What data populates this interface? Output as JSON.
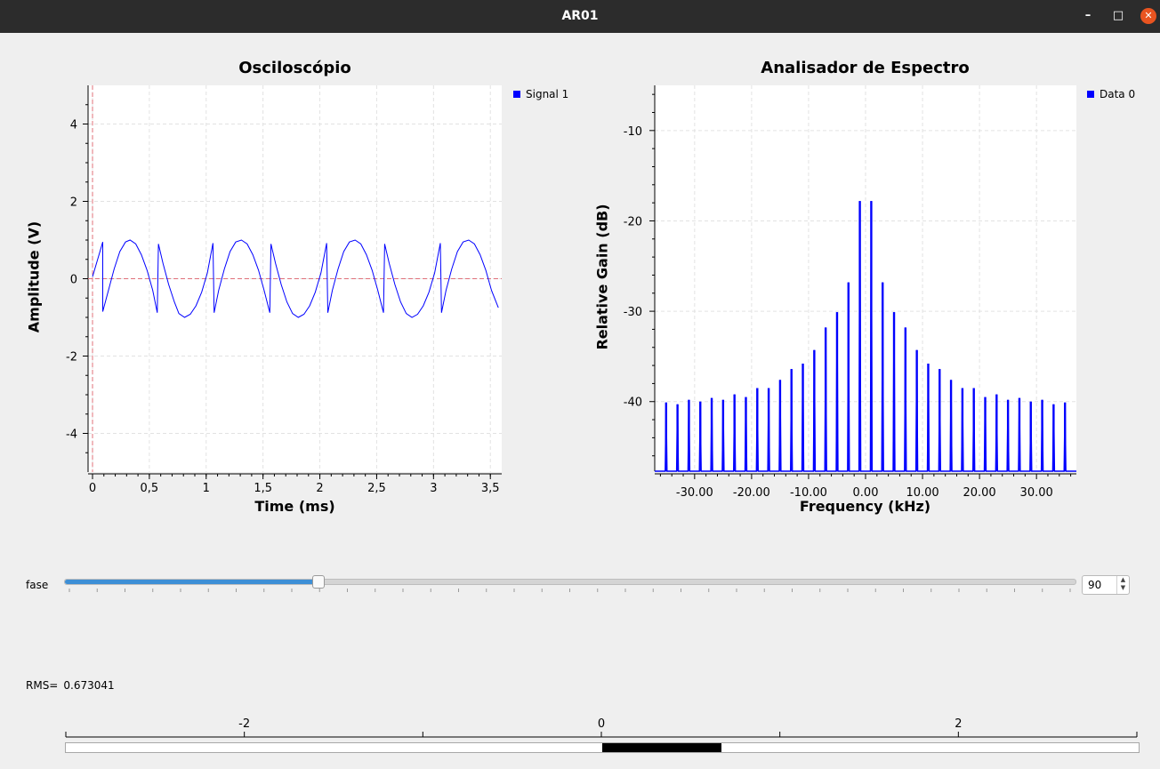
{
  "window": {
    "title": "AR01",
    "minimize_glyph": "–",
    "maximize_glyph": "□",
    "close_glyph": "✕"
  },
  "oscilloscope": {
    "title": "Osciloscópio",
    "xlabel": "Time (ms)",
    "ylabel": "Amplitude (V)",
    "legend": "Signal 1"
  },
  "spectrum": {
    "title": "Analisador de Espectro",
    "xlabel": "Frequency (kHz)",
    "ylabel": "Relative Gain (dB)",
    "legend": "Data 0"
  },
  "controls": {
    "fase_label": "fase",
    "fase_value": "90",
    "fase_min": 0,
    "fase_max": 360,
    "rms_label": "RMS=",
    "rms_value": "0.673041"
  },
  "bar_gauge": {
    "value": 0.67,
    "min": -3,
    "max": 3,
    "tick_labels": [
      {
        "v": -2,
        "t": "-2"
      },
      {
        "v": 0,
        "t": "0"
      },
      {
        "v": 2,
        "t": "2"
      }
    ]
  },
  "colors": {
    "signal": "#0000ff",
    "marker": "#e0707a",
    "accent": "#3d8fd6",
    "close": "#e95420"
  },
  "chart_data": [
    {
      "type": "line",
      "title": "Osciloscópio",
      "xlabel": "Time (ms)",
      "ylabel": "Amplitude (V)",
      "xlim": [
        0,
        3.6
      ],
      "ylim": [
        -5,
        5
      ],
      "xticks": [
        {
          "v": 0,
          "t": "0"
        },
        {
          "v": 0.5,
          "t": "0,5"
        },
        {
          "v": 1,
          "t": "1"
        },
        {
          "v": 1.5,
          "t": "1,5"
        },
        {
          "v": 2,
          "t": "2"
        },
        {
          "v": 2.5,
          "t": "2,5"
        },
        {
          "v": 3,
          "t": "3"
        },
        {
          "v": 3.5,
          "t": "3,5"
        }
      ],
      "yticks": [
        {
          "v": 4,
          "t": "4"
        },
        {
          "v": 2,
          "t": "2"
        },
        {
          "v": 0,
          "t": "0"
        },
        {
          "v": -2,
          "t": "-2"
        },
        {
          "v": -4,
          "t": "-4"
        }
      ],
      "grid": true,
      "legend_position": "right",
      "series": [
        {
          "name": "Signal 1",
          "x": [
            0.0,
            0.05,
            0.09,
            0.09,
            0.14,
            0.19,
            0.24,
            0.29,
            0.33,
            0.38,
            0.43,
            0.48,
            0.53,
            0.57,
            0.58,
            0.62,
            0.67,
            0.72,
            0.76,
            0.81,
            0.86,
            0.91,
            0.96,
            1.01,
            1.06,
            1.07,
            1.11,
            1.16,
            1.21,
            1.26,
            1.31,
            1.36,
            1.41,
            1.46,
            1.51,
            1.56,
            1.57,
            1.61,
            1.66,
            1.71,
            1.76,
            1.81,
            1.86,
            1.91,
            1.96,
            2.01,
            2.06,
            2.07,
            2.11,
            2.16,
            2.21,
            2.26,
            2.31,
            2.36,
            2.41,
            2.46,
            2.51,
            2.56,
            2.57,
            2.61,
            2.66,
            2.71,
            2.76,
            2.81,
            2.86,
            2.91,
            2.96,
            3.01,
            3.06,
            3.07,
            3.11,
            3.16,
            3.21,
            3.26,
            3.31,
            3.36,
            3.41,
            3.46,
            3.51,
            3.57
          ],
          "y": [
            0.05,
            0.55,
            0.95,
            -0.85,
            -0.3,
            0.25,
            0.7,
            0.95,
            1.0,
            0.9,
            0.62,
            0.22,
            -0.3,
            -0.88,
            0.9,
            0.4,
            -0.15,
            -0.6,
            -0.9,
            -1.0,
            -0.92,
            -0.7,
            -0.35,
            0.15,
            0.92,
            -0.88,
            -0.3,
            0.25,
            0.7,
            0.95,
            1.0,
            0.9,
            0.62,
            0.22,
            -0.3,
            -0.88,
            0.9,
            0.4,
            -0.15,
            -0.6,
            -0.9,
            -1.0,
            -0.92,
            -0.7,
            -0.35,
            0.15,
            0.92,
            -0.88,
            -0.3,
            0.25,
            0.7,
            0.95,
            1.0,
            0.9,
            0.62,
            0.22,
            -0.3,
            -0.88,
            0.9,
            0.4,
            -0.15,
            -0.6,
            -0.9,
            -1.0,
            -0.92,
            -0.7,
            -0.35,
            0.15,
            0.92,
            -0.88,
            -0.3,
            0.25,
            0.7,
            0.95,
            1.0,
            0.9,
            0.62,
            0.22,
            -0.3,
            -0.75
          ]
        }
      ],
      "markers": {
        "vertical_x": 0,
        "horizontal_y": 0
      }
    },
    {
      "type": "bar",
      "title": "Analisador de Espectro",
      "xlabel": "Frequency (kHz)",
      "ylabel": "Relative Gain (dB)",
      "xlim": [
        -37,
        37
      ],
      "ylim": [
        -47.7,
        -5
      ],
      "xticks": [
        {
          "v": -30,
          "t": "-30.00"
        },
        {
          "v": -20,
          "t": "-20.00"
        },
        {
          "v": -10,
          "t": "-10.00"
        },
        {
          "v": 0,
          "t": "0.00"
        },
        {
          "v": 10,
          "t": "10.00"
        },
        {
          "v": 20,
          "t": "20.00"
        },
        {
          "v": 30,
          "t": "30.00"
        }
      ],
      "yticks": [
        {
          "v": -10,
          "t": "-10"
        },
        {
          "v": -20,
          "t": "-20"
        },
        {
          "v": -30,
          "t": "-30"
        },
        {
          "v": -40,
          "t": "-40"
        }
      ],
      "grid": true,
      "legend_position": "right",
      "series": [
        {
          "name": "Data 0",
          "x": [
            -35,
            -33,
            -31,
            -29,
            -27,
            -25,
            -23,
            -21,
            -19,
            -17,
            -15,
            -13,
            -11,
            -9,
            -7,
            -5,
            -3,
            -1,
            1,
            3,
            5,
            7,
            9,
            11,
            13,
            15,
            17,
            19,
            21,
            23,
            25,
            27,
            29,
            31,
            33,
            35
          ],
          "y": [
            -40.1,
            -40.3,
            -39.8,
            -40.0,
            -39.6,
            -39.8,
            -39.2,
            -39.5,
            -38.5,
            -38.5,
            -37.6,
            -36.4,
            -35.8,
            -34.3,
            -31.8,
            -30.1,
            -26.8,
            -17.8,
            -17.8,
            -26.8,
            -30.1,
            -31.8,
            -34.3,
            -35.8,
            -36.4,
            -37.6,
            -38.5,
            -38.5,
            -39.5,
            -39.2,
            -39.8,
            -39.6,
            -40.0,
            -39.8,
            -40.3,
            -40.1
          ]
        }
      ]
    }
  ]
}
